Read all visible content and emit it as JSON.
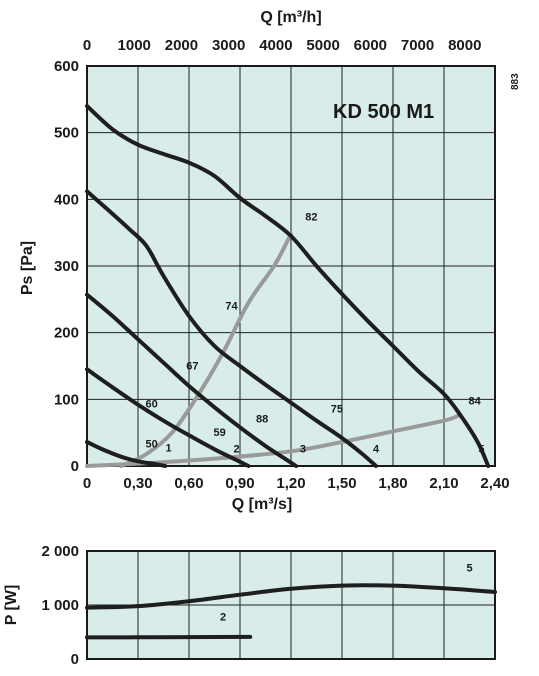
{
  "chart_data": [
    {
      "type": "line",
      "title": "KD 500 M1",
      "side_code": "883",
      "xlabel": "Q [m³/s]",
      "ylabel": "Ps [Pa]",
      "x2label": "Q [m³/h]",
      "xlim": [
        0,
        2.4
      ],
      "ylim": [
        0,
        600
      ],
      "x2lim": [
        0,
        8640
      ],
      "x_ticks": [
        "0",
        "0,30",
        "0,60",
        "0,90",
        "1,20",
        "1,50",
        "1,80",
        "2,10",
        "2,40"
      ],
      "x2_ticks": [
        "0",
        "1000",
        "2000",
        "3000",
        "4000",
        "5000",
        "6000",
        "7000",
        "8000"
      ],
      "y_ticks": [
        "0",
        "100",
        "200",
        "300",
        "400",
        "500",
        "600"
      ],
      "grid": true,
      "colors": {
        "fan": "#1e1e1e",
        "efficiency": "#9a9a9a",
        "background": "#d8ecea",
        "grid": "#222222"
      },
      "series": [
        {
          "name": "1",
          "points": [
            [
              0,
              36
            ],
            [
              0.1,
              24
            ],
            [
              0.2,
              14
            ],
            [
              0.3,
              7
            ],
            [
              0.4,
              3
            ],
            [
              0.46,
              0
            ]
          ]
        },
        {
          "name": "2",
          "points": [
            [
              0,
              145
            ],
            [
              0.15,
              118
            ],
            [
              0.3,
              92
            ],
            [
              0.45,
              68
            ],
            [
              0.6,
              46
            ],
            [
              0.75,
              25
            ],
            [
              0.87,
              10
            ],
            [
              0.95,
              0
            ]
          ]
        },
        {
          "name": "3",
          "points": [
            [
              0,
              257
            ],
            [
              0.15,
              225
            ],
            [
              0.3,
              190
            ],
            [
              0.45,
              155
            ],
            [
              0.6,
              120
            ],
            [
              0.75,
              88
            ],
            [
              0.9,
              58
            ],
            [
              1.05,
              30
            ],
            [
              1.17,
              10
            ],
            [
              1.23,
              0
            ]
          ]
        },
        {
          "name": "4",
          "points": [
            [
              0,
              412
            ],
            [
              0.12,
              385
            ],
            [
              0.25,
              355
            ],
            [
              0.35,
              330
            ],
            [
              0.45,
              285
            ],
            [
              0.6,
              225
            ],
            [
              0.75,
              180
            ],
            [
              0.9,
              150
            ],
            [
              1.05,
              122
            ],
            [
              1.2,
              95
            ],
            [
              1.35,
              68
            ],
            [
              1.5,
              42
            ],
            [
              1.62,
              18
            ],
            [
              1.7,
              0
            ]
          ]
        },
        {
          "name": "5",
          "points": [
            [
              0,
              540
            ],
            [
              0.15,
              505
            ],
            [
              0.3,
              482
            ],
            [
              0.45,
              468
            ],
            [
              0.6,
              455
            ],
            [
              0.75,
              435
            ],
            [
              0.9,
              402
            ],
            [
              1.05,
              375
            ],
            [
              1.2,
              345
            ],
            [
              1.35,
              300
            ],
            [
              1.5,
              258
            ],
            [
              1.65,
              218
            ],
            [
              1.8,
              180
            ],
            [
              1.95,
              142
            ],
            [
              2.1,
              108
            ],
            [
              2.2,
              75
            ],
            [
              2.3,
              35
            ],
            [
              2.36,
              0
            ]
          ]
        }
      ],
      "efficiency_curves": [
        {
          "name": "82",
          "points": [
            [
              0.2,
              0
            ],
            [
              0.35,
              18
            ],
            [
              0.5,
              50
            ],
            [
              0.65,
              105
            ],
            [
              0.8,
              170
            ],
            [
              0.95,
              245
            ],
            [
              1.1,
              300
            ],
            [
              1.2,
              348
            ]
          ]
        },
        {
          "name": "84",
          "points": [
            [
              0,
              0
            ],
            [
              0.4,
              5
            ],
            [
              0.8,
              12
            ],
            [
              1.2,
              22
            ],
            [
              1.5,
              36
            ],
            [
              1.8,
              52
            ],
            [
              2.1,
              68
            ],
            [
              2.18,
              75
            ]
          ]
        }
      ],
      "curve_labels": [
        {
          "text": "1",
          "x": 0.48,
          "y": 22
        },
        {
          "text": "2",
          "x": 0.88,
          "y": 20
        },
        {
          "text": "3",
          "x": 1.27,
          "y": 20
        },
        {
          "text": "4",
          "x": 1.7,
          "y": 20
        },
        {
          "text": "5",
          "x": 2.32,
          "y": 20
        },
        {
          "text": "50",
          "x": 0.38,
          "y": 28
        },
        {
          "text": "59",
          "x": 0.78,
          "y": 45
        },
        {
          "text": "60",
          "x": 0.38,
          "y": 88
        },
        {
          "text": "67",
          "x": 0.62,
          "y": 145
        },
        {
          "text": "74",
          "x": 0.85,
          "y": 235
        },
        {
          "text": "75",
          "x": 1.47,
          "y": 80
        },
        {
          "text": "82",
          "x": 1.32,
          "y": 368
        },
        {
          "text": "84",
          "x": 2.28,
          "y": 92
        },
        {
          "text": "88",
          "x": 1.03,
          "y": 65
        }
      ]
    },
    {
      "type": "line",
      "ylabel": "P [W]",
      "xlim": [
        0,
        2.4
      ],
      "ylim": [
        0,
        2000
      ],
      "y_ticks": [
        "0",
        "1 000",
        "2 000"
      ],
      "grid": true,
      "series": [
        {
          "name": "5",
          "points": [
            [
              0,
              950
            ],
            [
              0.3,
              980
            ],
            [
              0.6,
              1070
            ],
            [
              0.9,
              1190
            ],
            [
              1.2,
              1300
            ],
            [
              1.5,
              1360
            ],
            [
              1.8,
              1360
            ],
            [
              2.1,
              1310
            ],
            [
              2.4,
              1240
            ]
          ]
        },
        {
          "name": "2",
          "points": [
            [
              0,
              400
            ],
            [
              0.3,
              402
            ],
            [
              0.6,
              405
            ],
            [
              0.96,
              410
            ]
          ]
        }
      ],
      "curve_labels": [
        {
          "text": "5",
          "x": 2.25,
          "y": 1620
        },
        {
          "text": "2",
          "x": 0.8,
          "y": 710
        }
      ]
    }
  ]
}
